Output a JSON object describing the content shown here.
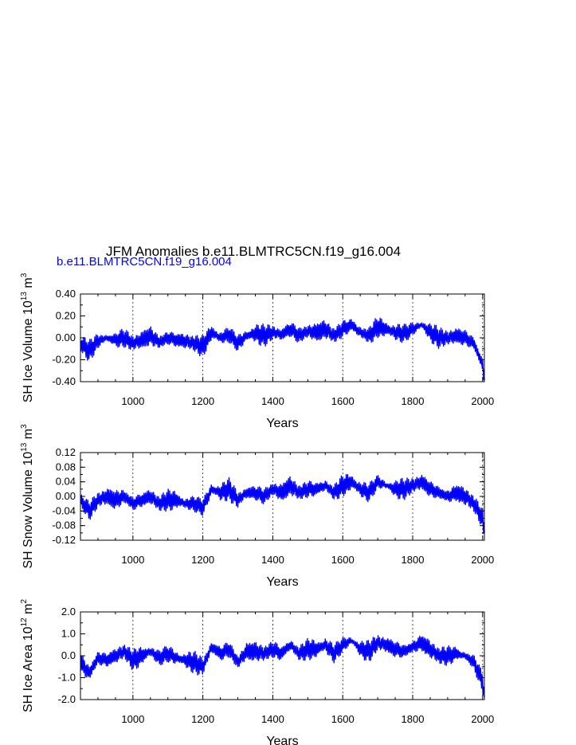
{
  "title": "JFM Anomalies b.e11.BLMTRC5CN.f19_g16.004",
  "subtitle": "b.e11.BLMTRC5CN.f19_g16.004",
  "colors": {
    "series": "#0000ff",
    "text": "#000000",
    "subtitle": "#0000ff",
    "frame": "#000000",
    "grid": "#000000"
  },
  "chart_data": [
    {
      "type": "line",
      "ylabel": "SH Ice Volume 10^13 m^3",
      "xlabel": "Years",
      "xlim": [
        850,
        2005
      ],
      "ylim": [
        -0.4,
        0.4
      ],
      "xticks": [
        1000,
        1200,
        1400,
        1600,
        1800,
        2000
      ],
      "xtick_labels": [
        "1000",
        "1200",
        "1400",
        "1600",
        "1800",
        "2000"
      ],
      "yticks": [
        0.4,
        0.2,
        0.0,
        -0.2,
        -0.4
      ],
      "ytick_labels": [
        "0.40",
        "0.20",
        "0.00",
        "-0.20",
        "-0.40"
      ],
      "grid": "vertical dashed lines at major x ticks",
      "series": [
        {
          "color": "#0000ff",
          "x": [
            850,
            875,
            900,
            925,
            950,
            975,
            1000,
            1025,
            1050,
            1075,
            1100,
            1125,
            1150,
            1175,
            1200,
            1225,
            1250,
            1275,
            1300,
            1325,
            1350,
            1375,
            1400,
            1425,
            1450,
            1475,
            1500,
            1525,
            1550,
            1575,
            1600,
            1625,
            1650,
            1675,
            1700,
            1725,
            1750,
            1775,
            1800,
            1825,
            1850,
            1875,
            1900,
            1925,
            1950,
            1975,
            2000,
            2005
          ],
          "values": [
            -0.05,
            -0.12,
            -0.03,
            0.0,
            -0.02,
            0.0,
            -0.05,
            -0.02,
            0.02,
            -0.04,
            0.0,
            -0.02,
            -0.03,
            -0.05,
            -0.08,
            0.05,
            0.0,
            0.03,
            -0.05,
            0.02,
            0.04,
            0.02,
            0.05,
            0.03,
            0.08,
            0.02,
            0.06,
            0.05,
            0.08,
            0.02,
            0.08,
            0.12,
            0.05,
            0.02,
            0.1,
            0.08,
            0.05,
            0.04,
            0.08,
            0.12,
            0.05,
            0.0,
            0.0,
            0.02,
            0.0,
            -0.05,
            -0.25,
            -0.38
          ]
        }
      ]
    },
    {
      "type": "line",
      "ylabel": "SH Snow Volume 10^13 m^3",
      "xlabel": "Years",
      "xlim": [
        850,
        2005
      ],
      "ylim": [
        -0.12,
        0.12
      ],
      "xticks": [
        1000,
        1200,
        1400,
        1600,
        1800,
        2000
      ],
      "xtick_labels": [
        "1000",
        "1200",
        "1400",
        "1600",
        "1800",
        "2000"
      ],
      "yticks": [
        0.12,
        0.08,
        0.04,
        0.0,
        -0.04,
        -0.08,
        -0.12
      ],
      "ytick_labels": [
        "0.12",
        "0.08",
        "0.04",
        "0.00",
        "-0.04",
        "-0.08",
        "-0.12"
      ],
      "grid": "vertical dashed lines at major x ticks",
      "series": [
        {
          "color": "#0000ff",
          "x": [
            850,
            875,
            900,
            925,
            950,
            975,
            1000,
            1025,
            1050,
            1075,
            1100,
            1125,
            1150,
            1175,
            1200,
            1225,
            1250,
            1275,
            1300,
            1325,
            1350,
            1375,
            1400,
            1425,
            1450,
            1475,
            1500,
            1525,
            1550,
            1575,
            1600,
            1625,
            1650,
            1675,
            1700,
            1725,
            1750,
            1775,
            1800,
            1825,
            1850,
            1875,
            1900,
            1925,
            1950,
            1975,
            2000,
            2005
          ],
          "values": [
            -0.01,
            -0.04,
            -0.01,
            0.0,
            -0.01,
            0.0,
            -0.02,
            -0.01,
            0.0,
            -0.02,
            -0.01,
            -0.01,
            -0.02,
            -0.02,
            -0.03,
            0.02,
            0.01,
            0.02,
            -0.01,
            0.01,
            0.01,
            0.0,
            0.02,
            0.01,
            0.03,
            0.01,
            0.02,
            0.02,
            0.03,
            0.01,
            0.03,
            0.04,
            0.02,
            0.01,
            0.04,
            0.03,
            0.02,
            0.02,
            0.03,
            0.04,
            0.02,
            0.01,
            0.0,
            0.01,
            0.0,
            -0.02,
            -0.06,
            -0.1
          ]
        }
      ]
    },
    {
      "type": "line",
      "ylabel": "SH Ice Area 10^12 m^2",
      "xlabel": "Years",
      "xlim": [
        850,
        2005
      ],
      "ylim": [
        -2.0,
        2.0
      ],
      "xticks": [
        1000,
        1200,
        1400,
        1600,
        1800,
        2000
      ],
      "xtick_labels": [
        "1000",
        "1200",
        "1400",
        "1600",
        "1800",
        "2000"
      ],
      "yticks": [
        2.0,
        1.0,
        0.0,
        -1.0,
        -2.0
      ],
      "ytick_labels": [
        "2.0",
        "1.0",
        "0.0",
        "-1.0",
        "-2.0"
      ],
      "grid": "vertical dashed lines at major x ticks",
      "series": [
        {
          "color": "#0000ff",
          "x": [
            850,
            875,
            900,
            925,
            950,
            975,
            1000,
            1025,
            1050,
            1075,
            1100,
            1125,
            1150,
            1175,
            1200,
            1225,
            1250,
            1275,
            1300,
            1325,
            1350,
            1375,
            1400,
            1425,
            1450,
            1475,
            1500,
            1525,
            1550,
            1575,
            1600,
            1625,
            1650,
            1675,
            1700,
            1725,
            1750,
            1775,
            1800,
            1825,
            1850,
            1875,
            1900,
            1925,
            1950,
            1975,
            2000,
            2005
          ],
          "values": [
            -0.3,
            -0.8,
            -0.1,
            -0.2,
            0.0,
            0.2,
            -0.2,
            0.0,
            0.2,
            -0.1,
            0.1,
            -0.1,
            -0.2,
            -0.3,
            -0.5,
            0.4,
            0.1,
            0.3,
            -0.3,
            0.2,
            0.2,
            0.1,
            0.3,
            0.1,
            0.5,
            0.1,
            0.3,
            0.3,
            0.5,
            0.1,
            0.5,
            0.7,
            0.3,
            0.2,
            0.6,
            0.5,
            0.3,
            0.2,
            0.4,
            0.6,
            0.3,
            0.0,
            0.0,
            0.1,
            0.0,
            -0.3,
            -1.2,
            -1.9
          ]
        }
      ]
    }
  ]
}
